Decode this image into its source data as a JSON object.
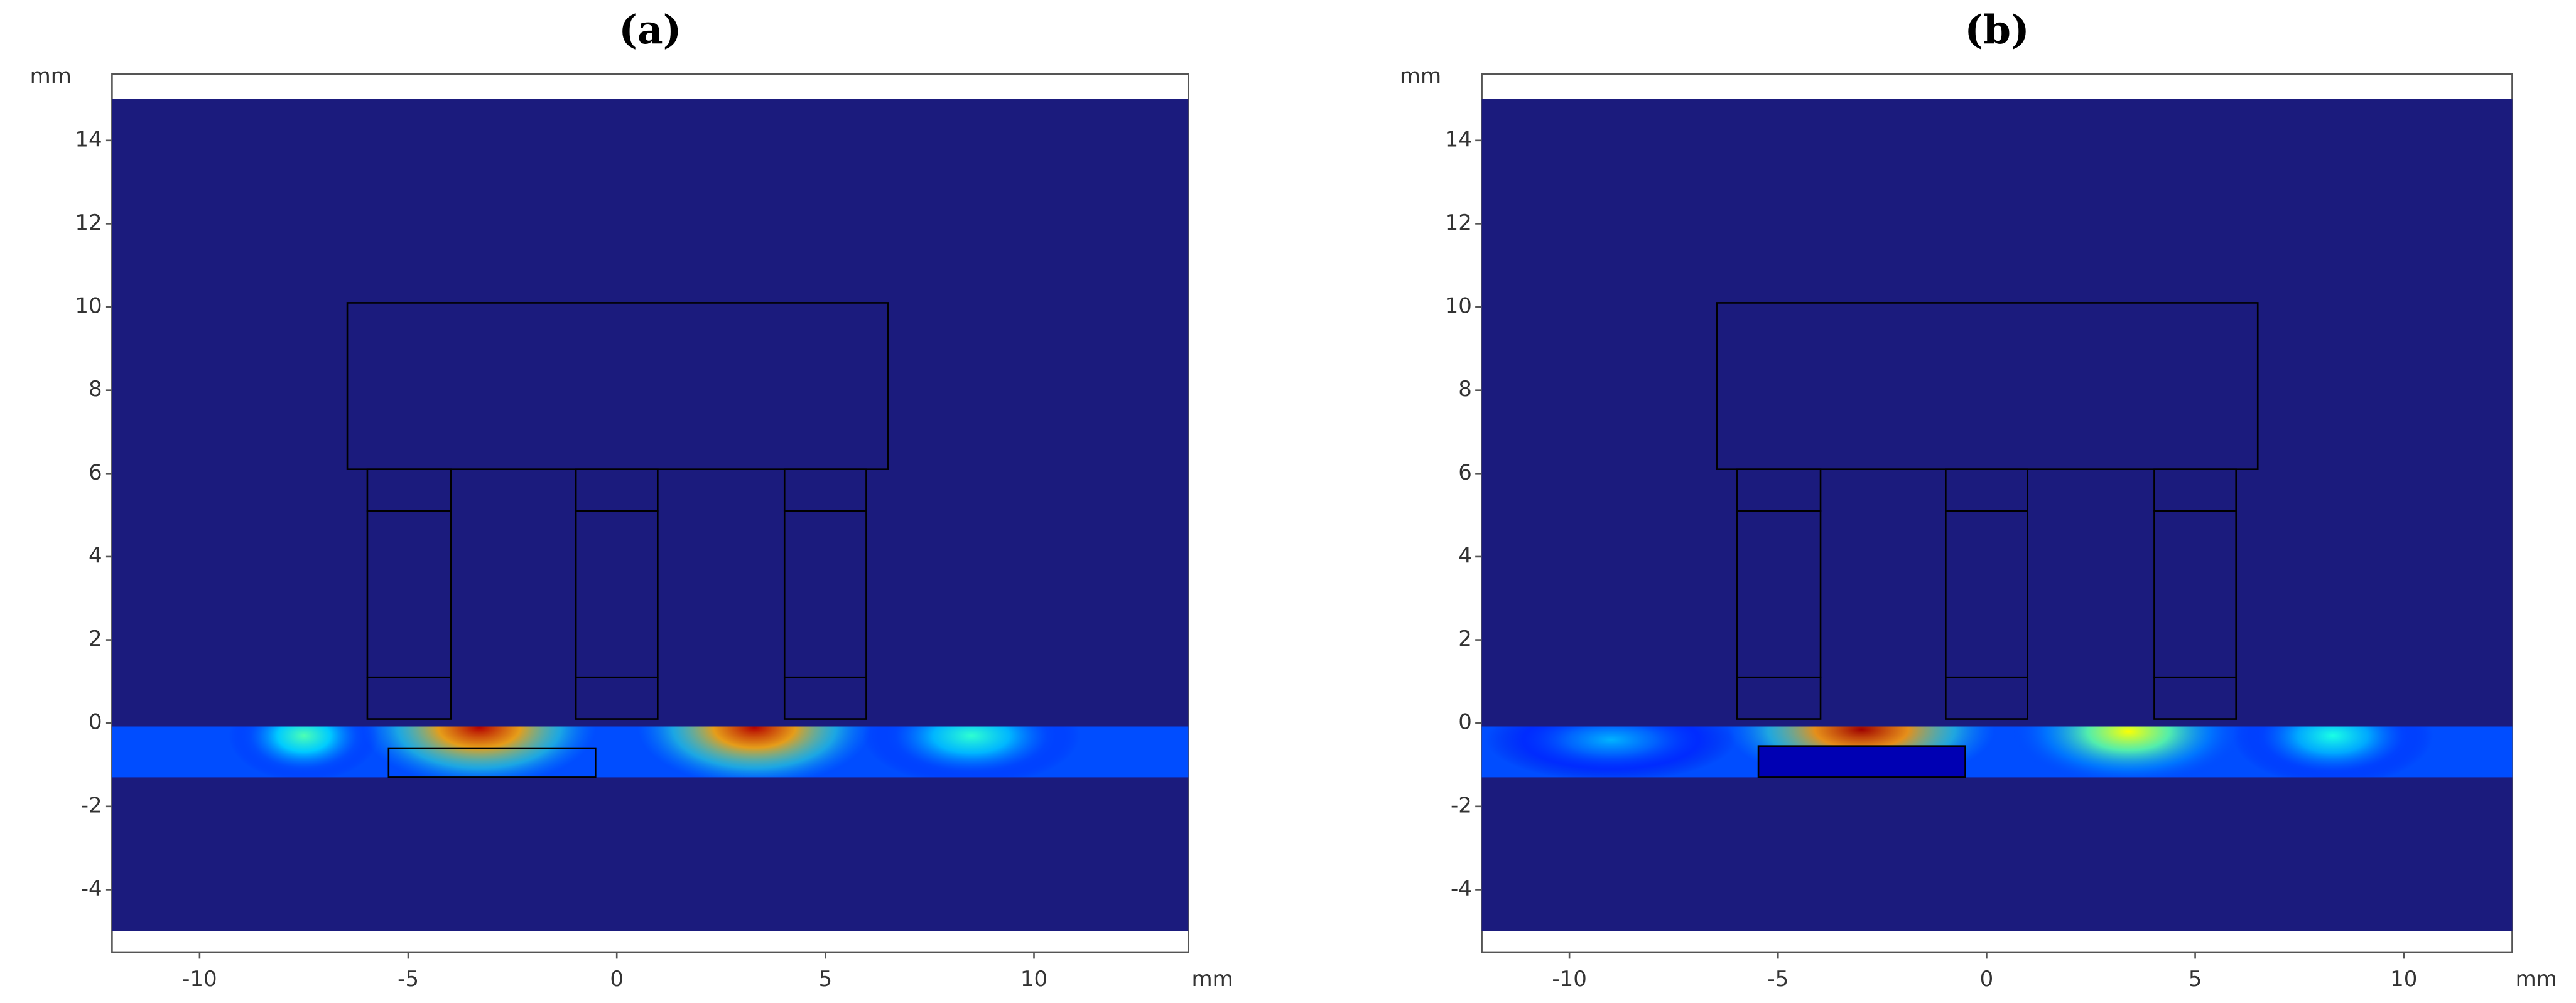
{
  "chart_data": [
    {
      "type": "heatmap",
      "title": "(a)",
      "x_unit": "mm",
      "y_unit": "mm",
      "xlim": [
        -12.1,
        13.7
      ],
      "ylim": [
        -5.5,
        15.6
      ],
      "xticks": [
        -10,
        -5,
        0,
        5,
        10
      ],
      "yticks": [
        -4,
        -2,
        0,
        2,
        4,
        6,
        8,
        10,
        12,
        14
      ],
      "field_ylim": [
        -5,
        15
      ],
      "background": "#1b1b7d",
      "strip": [
        -1.3,
        -0.08
      ],
      "strip_value": 0.2,
      "rects": [
        [
          -6.46,
          6.1,
          6.5,
          10.1
        ],
        [
          -5.98,
          0.1,
          -3.98,
          1.1
        ],
        [
          -5.98,
          1.1,
          -3.98,
          5.1
        ],
        [
          -5.98,
          5.1,
          -3.98,
          6.1
        ],
        [
          -0.98,
          0.1,
          0.98,
          1.1
        ],
        [
          -0.98,
          1.1,
          0.98,
          5.1
        ],
        [
          -0.98,
          5.1,
          0.98,
          6.1
        ],
        [
          4.02,
          0.1,
          5.98,
          1.1
        ],
        [
          4.02,
          1.1,
          5.98,
          5.1
        ],
        [
          4.02,
          5.1,
          5.98,
          6.1
        ]
      ],
      "inner_rect": [
        -5.47,
        -1.3,
        -0.51,
        -0.6
      ],
      "hotspots": [
        {
          "x": -3.3,
          "y": -0.1,
          "rx": 2.8,
          "ry": 1.4,
          "value": 0.95
        },
        {
          "x": 3.3,
          "y": -0.1,
          "rx": 2.8,
          "ry": 1.4,
          "value": 0.95
        },
        {
          "x": -7.5,
          "y": -0.3,
          "rx": 1.8,
          "ry": 1.1,
          "value": 0.45
        },
        {
          "x": 8.5,
          "y": -0.3,
          "rx": 2.6,
          "ry": 1.2,
          "value": 0.42
        }
      ]
    },
    {
      "type": "heatmap",
      "title": "(b)",
      "x_unit": "mm",
      "y_unit": "mm",
      "xlim": [
        -12.1,
        12.6
      ],
      "ylim": [
        -5.5,
        15.6
      ],
      "xticks": [
        -10,
        -5,
        0,
        5,
        10
      ],
      "yticks": [
        -4,
        -2,
        0,
        2,
        4,
        6,
        8,
        10,
        12,
        14
      ],
      "field_ylim": [
        -5,
        15
      ],
      "background": "#1b1b7d",
      "strip": [
        -1.3,
        -0.08
      ],
      "strip_value": 0.2,
      "rects": [
        [
          -6.46,
          6.1,
          6.5,
          10.1
        ],
        [
          -5.98,
          0.1,
          -3.98,
          1.1
        ],
        [
          -5.98,
          1.1,
          -3.98,
          5.1
        ],
        [
          -5.98,
          5.1,
          -3.98,
          6.1
        ],
        [
          -0.98,
          0.1,
          0.98,
          1.1
        ],
        [
          -0.98,
          1.1,
          0.98,
          5.1
        ],
        [
          -0.98,
          5.1,
          0.98,
          6.1
        ],
        [
          4.02,
          0.1,
          5.98,
          1.1
        ],
        [
          4.02,
          1.1,
          5.98,
          5.1
        ],
        [
          4.02,
          5.1,
          5.98,
          6.1
        ]
      ],
      "inner_rect": [
        -5.47,
        -1.3,
        -0.51,
        -0.55
      ],
      "inner_value": 0.05,
      "hotspots": [
        {
          "x": -3.0,
          "y": -0.15,
          "rx": 3.2,
          "ry": 1.3,
          "value": 0.97
        },
        {
          "x": 3.4,
          "y": -0.2,
          "rx": 2.8,
          "ry": 1.3,
          "value": 0.62
        },
        {
          "x": 8.3,
          "y": -0.3,
          "rx": 2.4,
          "ry": 1.2,
          "value": 0.4
        },
        {
          "x": -9.0,
          "y": -0.4,
          "rx": 3.0,
          "ry": 1.0,
          "value": 0.3
        }
      ]
    }
  ]
}
